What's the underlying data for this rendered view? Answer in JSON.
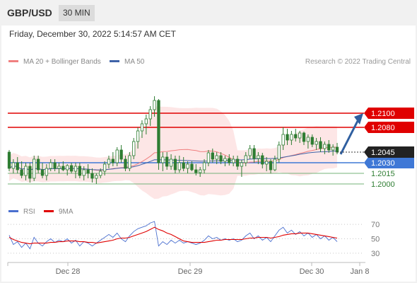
{
  "header": {
    "symbol": "GBP/USD",
    "timeframe": "30 MIN"
  },
  "timestamp": "Friday, December 30, 2022 5:14:57 AM CET",
  "legend": {
    "ma20": "MA 20 + Bollinger Bands",
    "ma50": "MA 50",
    "credit": "Research © 2022 Trading Central"
  },
  "rsi_legend": {
    "rsi": "RSI",
    "ma9": "9MA"
  },
  "colors": {
    "candle": "#2e7d32",
    "bb": "#fde3e3",
    "ma20": "#f08080",
    "ma50": "#3f63a8",
    "red_level": "#e00000",
    "blue_level": "#3f78d6",
    "green_level": "#74b37a",
    "arrow": "#2f5fa0",
    "rsi": "#4a6fcf",
    "rsi_ma": "#e00000"
  },
  "chart_data": [
    {
      "type": "candlestick",
      "title": "GBP/USD",
      "ylim": [
        1.1965,
        1.2165
      ],
      "x_labels": [
        "Dec 28",
        "Dec 29",
        "Dec 30",
        "Jan 8"
      ],
      "current_price": {
        "label": "1.2045",
        "value": 1.2045
      },
      "levels": [
        {
          "label": "1.2100",
          "value": 1.21,
          "kind": "resistance"
        },
        {
          "label": "1.2080",
          "value": 1.208,
          "kind": "resistance"
        },
        {
          "label": "1.2030",
          "value": 1.203,
          "kind": "pivot"
        },
        {
          "label": "1.2015",
          "value": 1.2015,
          "kind": "support"
        },
        {
          "label": "1.2000",
          "value": 1.2,
          "kind": "support"
        }
      ],
      "arrow": {
        "from": 1.2042,
        "to": 1.21,
        "direction": "up"
      },
      "series": [
        {
          "name": "MA 20 + Bollinger Bands",
          "kind": "ma_bands"
        },
        {
          "name": "MA 50",
          "kind": "ma"
        }
      ],
      "candles": [
        [
          1.2045,
          1.2048,
          1.2018,
          1.2022
        ],
        [
          1.2022,
          1.2035,
          1.2015,
          1.203
        ],
        [
          1.203,
          1.2038,
          1.2015,
          1.202
        ],
        [
          1.202,
          1.2032,
          1.2008,
          1.2012
        ],
        [
          1.2012,
          1.203,
          1.2005,
          1.2025
        ],
        [
          1.2025,
          1.203,
          1.2002,
          1.2008
        ],
        [
          1.2008,
          1.204,
          1.2004,
          1.2035
        ],
        [
          1.2035,
          1.204,
          1.2015,
          1.202
        ],
        [
          1.202,
          1.203,
          1.2008,
          1.2012
        ],
        [
          1.2012,
          1.2028,
          1.2005,
          1.2022
        ],
        [
          1.2022,
          1.2035,
          1.2018,
          1.203
        ],
        [
          1.203,
          1.2035,
          1.2018,
          1.2022
        ],
        [
          1.2022,
          1.203,
          1.2015,
          1.2025
        ],
        [
          1.2025,
          1.2032,
          1.2018,
          1.202
        ],
        [
          1.202,
          1.2028,
          1.2012,
          1.2026
        ],
        [
          1.2026,
          1.203,
          1.2015,
          1.2018
        ],
        [
          1.2018,
          1.203,
          1.2008,
          1.2025
        ],
        [
          1.2025,
          1.203,
          1.2008,
          1.2012
        ],
        [
          1.2012,
          1.2025,
          1.2005,
          1.202
        ],
        [
          1.202,
          1.2028,
          1.2008,
          1.2015
        ],
        [
          1.2015,
          1.2022,
          1.2002,
          1.2008
        ],
        [
          1.2008,
          1.2015,
          1.2,
          1.2012
        ],
        [
          1.2012,
          1.2022,
          1.2008,
          1.2018
        ],
        [
          1.2018,
          1.2032,
          1.2012,
          1.2028
        ],
        [
          1.2028,
          1.204,
          1.2022,
          1.2035
        ],
        [
          1.2035,
          1.2045,
          1.2025,
          1.203
        ],
        [
          1.203,
          1.2052,
          1.2025,
          1.2048
        ],
        [
          1.2048,
          1.2055,
          1.203,
          1.2035
        ],
        [
          1.2035,
          1.204,
          1.2018,
          1.2022
        ],
        [
          1.2022,
          1.2045,
          1.2018,
          1.204
        ],
        [
          1.204,
          1.2065,
          1.2035,
          1.206
        ],
        [
          1.206,
          1.208,
          1.205,
          1.2075
        ],
        [
          1.2075,
          1.209,
          1.2065,
          1.2085
        ],
        [
          1.2085,
          1.2098,
          1.207,
          1.2092
        ],
        [
          1.2092,
          1.211,
          1.2082,
          1.2105
        ],
        [
          1.2105,
          1.2124,
          1.2095,
          1.2118
        ],
        [
          1.2118,
          1.212,
          1.202,
          1.203
        ],
        [
          1.203,
          1.2045,
          1.2018,
          1.2038
        ],
        [
          1.2038,
          1.2045,
          1.202,
          1.2025
        ],
        [
          1.2025,
          1.2042,
          1.202,
          1.2035
        ],
        [
          1.2035,
          1.204,
          1.2015,
          1.202
        ],
        [
          1.202,
          1.204,
          1.2016,
          1.203
        ],
        [
          1.203,
          1.2038,
          1.2018,
          1.2022
        ],
        [
          1.2022,
          1.2032,
          1.2015,
          1.2028
        ],
        [
          1.2028,
          1.2032,
          1.2018,
          1.202
        ],
        [
          1.202,
          1.2028,
          1.2012,
          1.2016
        ],
        [
          1.2016,
          1.2024,
          1.201,
          1.202
        ],
        [
          1.202,
          1.2035,
          1.2015,
          1.203
        ],
        [
          1.203,
          1.2048,
          1.2025,
          1.2044
        ],
        [
          1.2044,
          1.205,
          1.203,
          1.2035
        ],
        [
          1.2035,
          1.2045,
          1.2028,
          1.204
        ],
        [
          1.204,
          1.2045,
          1.2028,
          1.2032
        ],
        [
          1.2032,
          1.204,
          1.2025,
          1.2036
        ],
        [
          1.2036,
          1.2042,
          1.2026,
          1.203
        ],
        [
          1.203,
          1.204,
          1.2025,
          1.2035
        ],
        [
          1.2035,
          1.204,
          1.202,
          1.2025
        ],
        [
          1.2025,
          1.2034,
          1.201,
          1.203
        ],
        [
          1.203,
          1.2045,
          1.2025,
          1.204
        ],
        [
          1.204,
          1.2055,
          1.2035,
          1.205
        ],
        [
          1.205,
          1.2055,
          1.203,
          1.2036
        ],
        [
          1.2036,
          1.2045,
          1.2028,
          1.204
        ],
        [
          1.204,
          1.2044,
          1.2022,
          1.2028
        ],
        [
          1.2028,
          1.2038,
          1.2018,
          1.2032
        ],
        [
          1.2032,
          1.2035,
          1.2015,
          1.202
        ],
        [
          1.202,
          1.204,
          1.2018,
          1.2035
        ],
        [
          1.2035,
          1.206,
          1.203,
          1.2055
        ],
        [
          1.2055,
          1.208,
          1.2048,
          1.207
        ],
        [
          1.207,
          1.2078,
          1.2055,
          1.2062
        ],
        [
          1.2062,
          1.2075,
          1.2055,
          1.207
        ],
        [
          1.207,
          1.2078,
          1.206,
          1.2065
        ],
        [
          1.2065,
          1.2075,
          1.2058,
          1.2072
        ],
        [
          1.2072,
          1.2074,
          1.2055,
          1.206
        ],
        [
          1.206,
          1.207,
          1.205,
          1.2066
        ],
        [
          1.2066,
          1.207,
          1.2052,
          1.2056
        ],
        [
          1.2056,
          1.2065,
          1.2048,
          1.206
        ],
        [
          1.206,
          1.2066,
          1.2045,
          1.205
        ],
        [
          1.205,
          1.206,
          1.2042,
          1.2056
        ],
        [
          1.2056,
          1.2062,
          1.2044,
          1.2048
        ],
        [
          1.2048,
          1.2056,
          1.204,
          1.2052
        ],
        [
          1.2052,
          1.2058,
          1.2042,
          1.2045
        ]
      ]
    },
    {
      "type": "line",
      "title": "RSI",
      "ylim": [
        20,
        80
      ],
      "y_ticks": [
        "70",
        "50",
        "30"
      ],
      "series": [
        {
          "name": "RSI",
          "values": [
            55,
            42,
            46,
            38,
            44,
            36,
            52,
            44,
            40,
            46,
            50,
            45,
            48,
            46,
            50,
            44,
            48,
            40,
            46,
            44,
            40,
            44,
            48,
            52,
            56,
            52,
            58,
            50,
            46,
            54,
            60,
            64,
            66,
            68,
            72,
            74,
            40,
            46,
            42,
            48,
            44,
            48,
            44,
            46,
            44,
            42,
            44,
            48,
            54,
            50,
            52,
            48,
            50,
            48,
            50,
            46,
            48,
            54,
            58,
            50,
            54,
            48,
            52,
            46,
            54,
            62,
            66,
            58,
            62,
            56,
            60,
            54,
            58,
            52,
            56,
            50,
            54,
            48,
            52,
            46
          ]
        },
        {
          "name": "9MA",
          "values": [
            52,
            49,
            47,
            45,
            44,
            43,
            44,
            44,
            44,
            44,
            45,
            45,
            46,
            46,
            47,
            47,
            47,
            46,
            46,
            45,
            45,
            44,
            45,
            46,
            47,
            48,
            50,
            51,
            51,
            52,
            54,
            56,
            58,
            60,
            63,
            66,
            63,
            61,
            58,
            56,
            53,
            50,
            47,
            46,
            45,
            45,
            45,
            45,
            46,
            47,
            48,
            48,
            49,
            49,
            49,
            49,
            49,
            50,
            51,
            51,
            52,
            52,
            52,
            51,
            52,
            53,
            55,
            56,
            57,
            57,
            58,
            58,
            58,
            57,
            56,
            55,
            54,
            53,
            52,
            51
          ]
        }
      ]
    }
  ]
}
